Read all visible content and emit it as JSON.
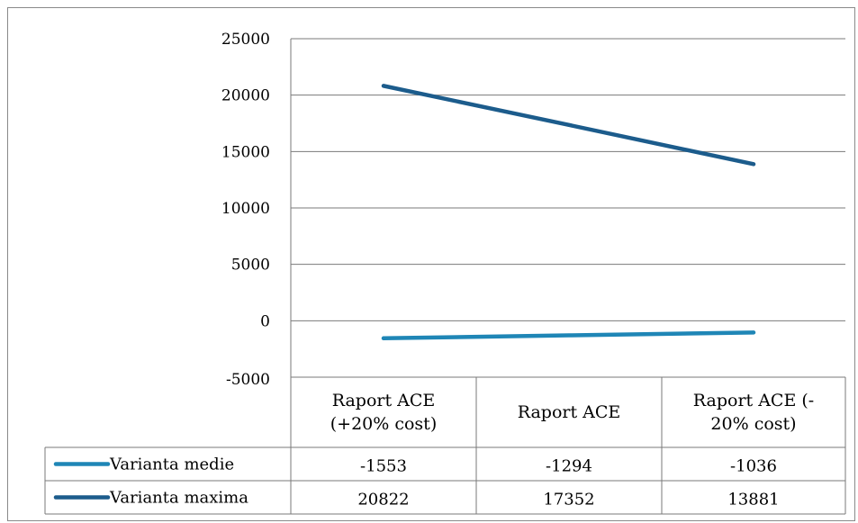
{
  "chart_data": {
    "type": "line",
    "title": "",
    "xlabel": "",
    "ylabel": "",
    "ylim": [
      -5000,
      25000
    ],
    "ytick_step": 5000,
    "ytick_labels": [
      "25000",
      "20000",
      "15000",
      "10000",
      "5000",
      "0",
      "-5000"
    ],
    "grid": true,
    "categories": [
      [
        "Raport ACE",
        "(+20% cost)"
      ],
      [
        "Raport ACE"
      ],
      [
        "Raport ACE (-",
        "20% cost)"
      ]
    ],
    "series": [
      {
        "name": "Varianta medie",
        "color": "#1f86b6",
        "values": [
          -1553,
          -1294,
          -1036
        ],
        "labels": [
          "-1553",
          "-1294",
          "-1036"
        ]
      },
      {
        "name": "Varianta maxima",
        "color": "#1c5c8c",
        "values": [
          20822,
          17352,
          13881
        ],
        "labels": [
          "20822",
          "17352",
          "13881"
        ]
      }
    ],
    "legend": "data-table"
  }
}
